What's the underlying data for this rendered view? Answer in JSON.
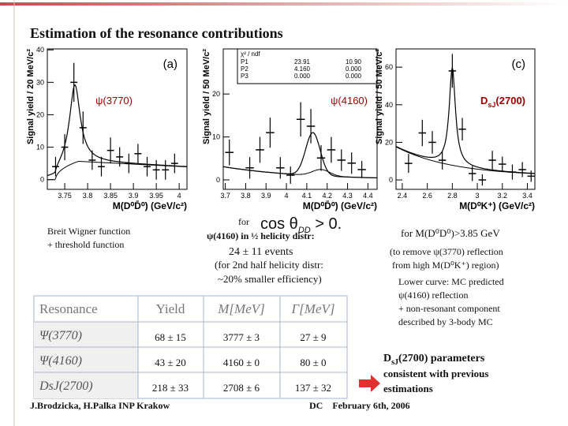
{
  "title": "Estimation of the resonance contributions",
  "plots": [
    {
      "label": "(a)",
      "annotation": [
        "ψ(3770)"
      ],
      "ylabel": "Signal yield / 20 MeV/c²",
      "xlabel": "M(D⁰D̄⁰) (GeV/c²)",
      "xlim": [
        3.712,
        4.017
      ],
      "ylim": [
        -3,
        40.3
      ],
      "xticks": [
        3.75,
        3.8,
        3.85,
        3.9,
        3.95,
        4
      ],
      "yticks": [
        0,
        10,
        20,
        30,
        40
      ],
      "x": [
        3.73,
        3.75,
        3.77,
        3.79,
        3.81,
        3.83,
        3.85,
        3.87,
        3.89,
        3.91,
        3.93,
        3.95,
        3.97,
        3.99
      ],
      "values": [
        4,
        10,
        30,
        16,
        6,
        4,
        9,
        7,
        5,
        8,
        4,
        3,
        3,
        5
      ],
      "errors": [
        3,
        4,
        6,
        5,
        3,
        3,
        4,
        3,
        3,
        3,
        3,
        3,
        3,
        3
      ]
    },
    {
      "annotation": [
        "ψ(4160)"
      ],
      "ylabel": "Signal yield / 50 MeV/c²",
      "xlabel": "M(D⁰D̄⁰) (GeV/c²)",
      "xlim": [
        3.69,
        4.445
      ],
      "ylim": [
        -2.2,
        30.5
      ],
      "xticks": [
        3.7,
        3.8,
        3.9,
        4,
        4.1,
        4.2,
        4.3,
        4.4
      ],
      "yticks": [
        0,
        10,
        20
      ],
      "x": [
        3.72,
        3.82,
        3.87,
        3.92,
        3.97,
        4.02,
        4.07,
        4.12,
        4.17,
        4.22,
        4.27,
        4.32,
        4.37
      ],
      "values": [
        6.4,
        2.8,
        7,
        11,
        2.8,
        1.1,
        14.1,
        12.5,
        5.1,
        7,
        4.6,
        3.9,
        2.4
      ],
      "errors": [
        3,
        2.5,
        3,
        3.5,
        2.5,
        2,
        4,
        4,
        3,
        3,
        2.5,
        2.5,
        2
      ],
      "stats": {
        "title": "χ² / ndf",
        "rows": [
          [
            "P1",
            "23.91",
            "10.90"
          ],
          [
            "P2",
            "4.160",
            "0.000"
          ],
          [
            "P3",
            "0.000",
            "0.000"
          ]
        ]
      }
    },
    {
      "label": "(c)",
      "annotation": [
        "D",
        "sJ",
        "(2700)"
      ],
      "ylabel": "Signal yield / 50 MeV/c²",
      "xlabel": "M(D⁰K⁺) (GeV/c²)",
      "xlim": [
        2.35,
        3.46
      ],
      "ylim": [
        -5,
        69.7
      ],
      "xticks": [
        2.4,
        2.6,
        2.8,
        3,
        3.2,
        3.4
      ],
      "yticks": [
        0,
        20,
        40,
        60
      ],
      "x": [
        2.45,
        2.56,
        2.64,
        2.72,
        2.8,
        2.88,
        2.96,
        3.04,
        3.12,
        3.2,
        3.28,
        3.36,
        3.43
      ],
      "values": [
        8.8,
        25,
        20,
        10.5,
        58,
        27,
        3.4,
        0,
        10.5,
        8.4,
        4.2,
        5.5,
        2
      ],
      "errors": [
        5,
        7,
        6,
        5,
        9,
        6,
        4,
        3,
        5,
        4,
        4,
        4,
        3
      ]
    }
  ],
  "notes": {
    "fit": [
      "Breit Wigner function",
      "+ threshold function"
    ],
    "cut": {
      "for": "for",
      "formula": [
        "cos θ",
        "DD",
        " > 0."
      ]
    },
    "helicity": "ψ(4160) in ½ helicity distr:",
    "events": "24 ± 11 events",
    "second_half": [
      "(for 2nd half helicity distr:",
      "~20% smaller efficiency)"
    ],
    "mass_cut": "for M(D⁰D⁰)>3.85 GeV",
    "remove": [
      "(to remove ψ(3770) reflection",
      "from high M(D⁰K⁺) region)"
    ],
    "lower_curve": [
      "Lower curve: MC predicted",
      "ψ(4160) reflection",
      "+ non-resonant component",
      "described by 3-body MC"
    ],
    "params": [
      "D",
      "sJ",
      "(2700) parameters"
    ],
    "consistent": [
      "consistent with previous",
      "estimations"
    ]
  },
  "table": {
    "header": [
      "Resonance",
      "Yield",
      "M[MeV]",
      "Γ[MeV]"
    ],
    "rows": [
      [
        "Ψ(3770)",
        "68 ± 15",
        "3777 ± 3",
        "27 ± 9"
      ],
      [
        "Ψ(4160)",
        "43 ± 20",
        "4160 ± 0",
        "80 ± 0"
      ],
      [
        "DsJ(2700)",
        "218 ± 33",
        "2708 ± 6",
        "137 ± 32"
      ]
    ]
  },
  "footer": {
    "authors": "J.Brodzicka, H.Palka  INP Krakow",
    "event": "DC    February 6th, 2006"
  }
}
